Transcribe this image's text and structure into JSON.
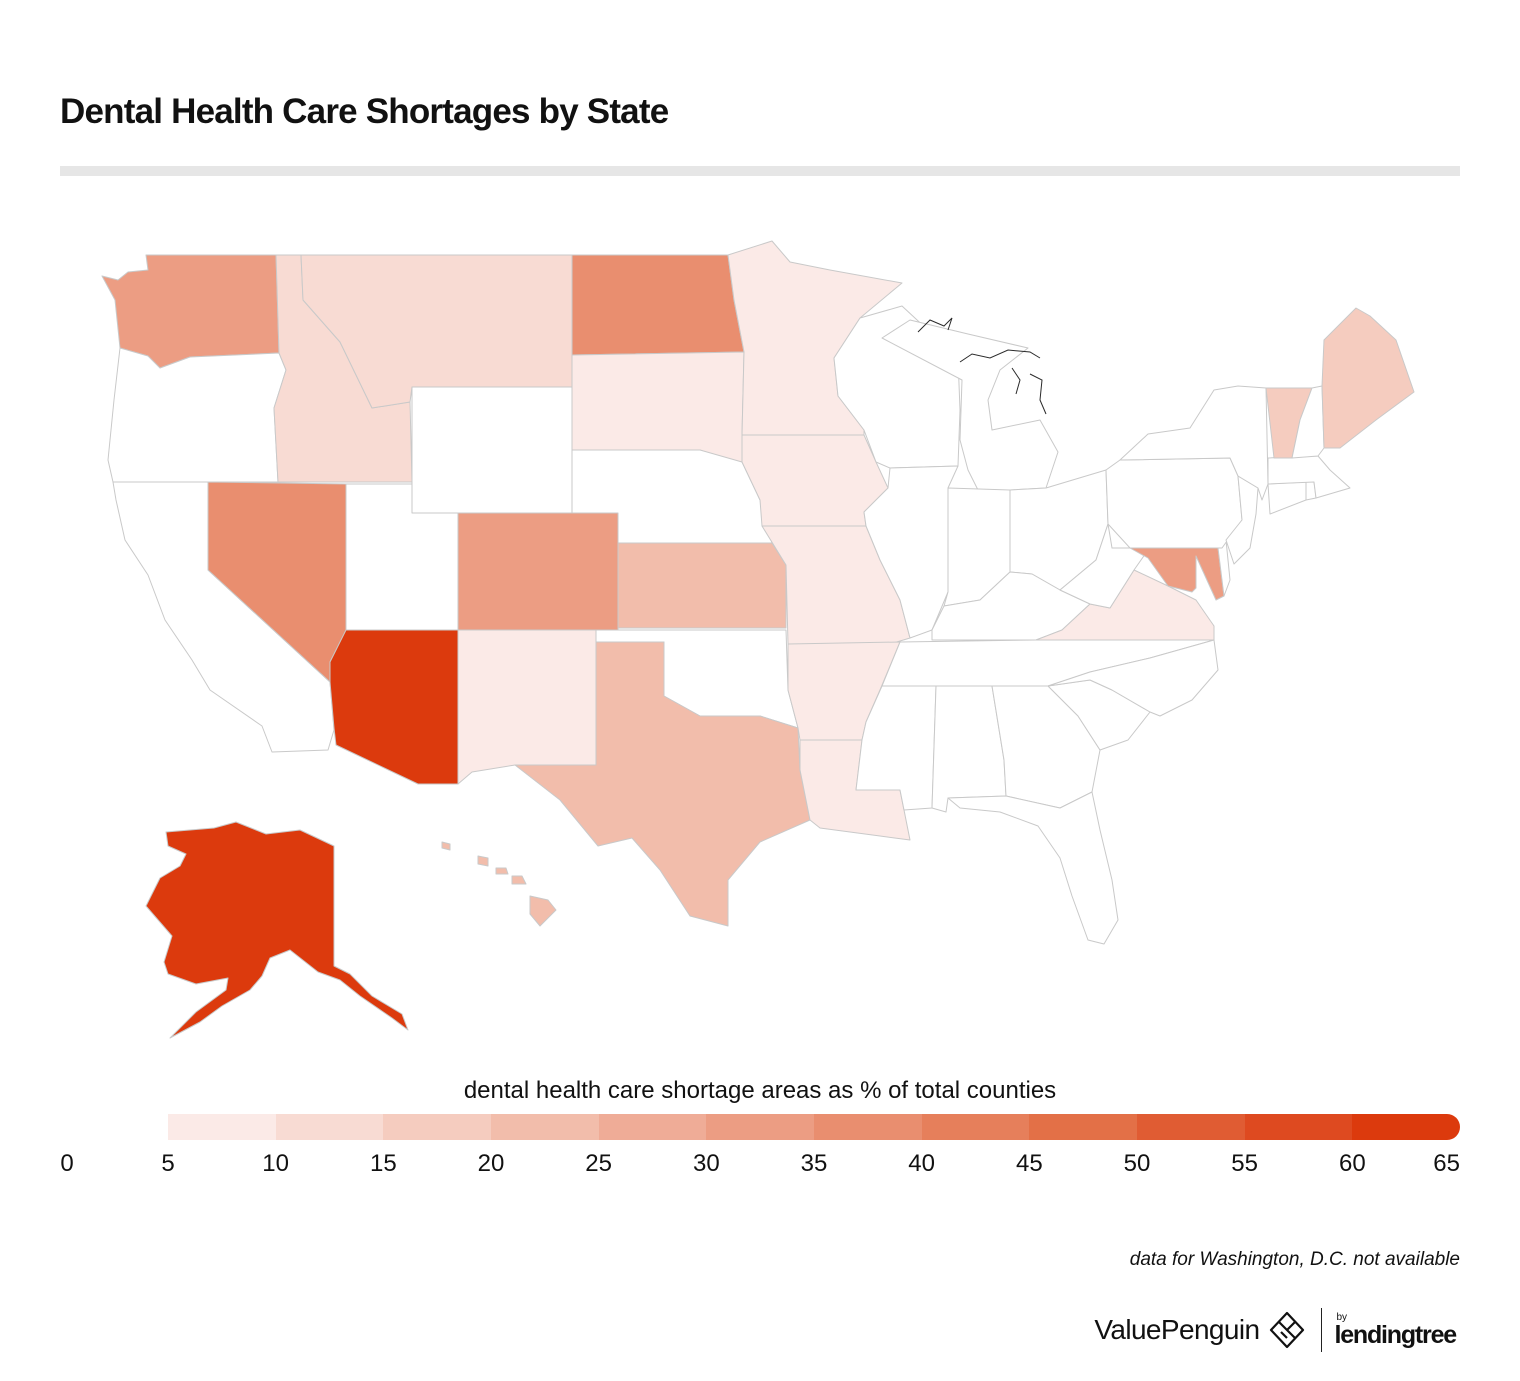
{
  "title": "Dental Health Care Shortages by State",
  "legend": {
    "title": "dental health care shortage areas as % of total counties",
    "ticks": [
      "0",
      "5",
      "10",
      "15",
      "20",
      "25",
      "30",
      "35",
      "40",
      "45",
      "50",
      "55",
      "60",
      "65"
    ],
    "colors": [
      "#fbeae7",
      "#f8dbd3",
      "#f5ccbf",
      "#f2bdab",
      "#efac97",
      "#ec9d83",
      "#e98e6f",
      "#e67f5b",
      "#e37047",
      "#e05c33",
      "#de4a20",
      "#dc3a0d"
    ]
  },
  "note": "data for Washington, D.C. not available",
  "branding": {
    "valuepenguin": "ValuePenguin",
    "by": "by",
    "lendingtree": "lendingtree"
  },
  "map_data": {
    "type": "choropleth",
    "unit": "% of counties",
    "bin_width": 5,
    "no_data_color": "#ffffff",
    "states": [
      {
        "code": "WA",
        "bin": 5
      },
      {
        "code": "OR",
        "bin": null
      },
      {
        "code": "CA",
        "bin": null
      },
      {
        "code": "NV",
        "bin": 6
      },
      {
        "code": "ID",
        "bin": 1
      },
      {
        "code": "MT",
        "bin": 1
      },
      {
        "code": "WY",
        "bin": null
      },
      {
        "code": "UT",
        "bin": null
      },
      {
        "code": "AZ",
        "bin": 11
      },
      {
        "code": "CO",
        "bin": 5
      },
      {
        "code": "NM",
        "bin": 0
      },
      {
        "code": "ND",
        "bin": 6
      },
      {
        "code": "SD",
        "bin": 0
      },
      {
        "code": "NE",
        "bin": null
      },
      {
        "code": "KS",
        "bin": 3
      },
      {
        "code": "OK",
        "bin": null
      },
      {
        "code": "TX",
        "bin": 3
      },
      {
        "code": "MN",
        "bin": 0
      },
      {
        "code": "IA",
        "bin": 0
      },
      {
        "code": "MO",
        "bin": 0
      },
      {
        "code": "AR",
        "bin": 0
      },
      {
        "code": "LA",
        "bin": 0
      },
      {
        "code": "WI",
        "bin": null
      },
      {
        "code": "IL",
        "bin": null
      },
      {
        "code": "MI",
        "bin": null
      },
      {
        "code": "IN",
        "bin": null
      },
      {
        "code": "OH",
        "bin": null
      },
      {
        "code": "KY",
        "bin": null
      },
      {
        "code": "TN",
        "bin": null
      },
      {
        "code": "MS",
        "bin": null
      },
      {
        "code": "AL",
        "bin": null
      },
      {
        "code": "GA",
        "bin": null
      },
      {
        "code": "FL",
        "bin": null
      },
      {
        "code": "SC",
        "bin": null
      },
      {
        "code": "NC",
        "bin": null
      },
      {
        "code": "VA",
        "bin": 0
      },
      {
        "code": "WV",
        "bin": null
      },
      {
        "code": "MD",
        "bin": 5
      },
      {
        "code": "DE",
        "bin": null
      },
      {
        "code": "PA",
        "bin": null
      },
      {
        "code": "NJ",
        "bin": null
      },
      {
        "code": "NY",
        "bin": null
      },
      {
        "code": "CT",
        "bin": null
      },
      {
        "code": "RI",
        "bin": null
      },
      {
        "code": "MA",
        "bin": null
      },
      {
        "code": "VT",
        "bin": 2
      },
      {
        "code": "NH",
        "bin": null
      },
      {
        "code": "ME",
        "bin": 2
      },
      {
        "code": "AK",
        "bin": 11
      },
      {
        "code": "HI",
        "bin": 3
      }
    ]
  }
}
